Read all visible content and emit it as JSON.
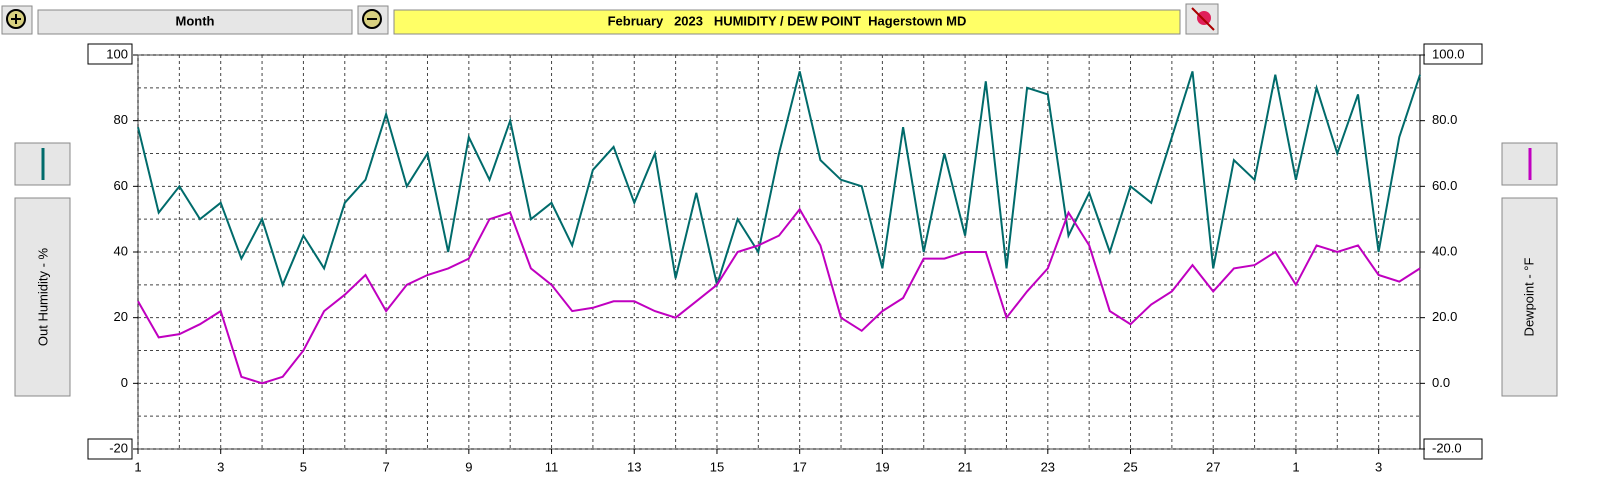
{
  "chart_data": {
    "type": "line",
    "title": "February   2023   HUMIDITY / DEW POINT  Hagerstown MD",
    "period": "Month",
    "x": [
      1,
      1.5,
      2,
      2.5,
      3,
      3.5,
      4,
      4.5,
      5,
      5.5,
      6,
      6.5,
      7,
      7.5,
      8,
      8.5,
      9,
      9.5,
      10,
      10.5,
      11,
      11.5,
      12,
      12.5,
      13,
      13.5,
      14,
      14.5,
      15,
      15.5,
      16,
      16.5,
      17,
      17.5,
      18,
      18.5,
      19,
      19.5,
      20,
      20.5,
      21,
      21.5,
      22,
      22.5,
      23,
      23.5,
      24,
      24.5,
      25,
      25.5,
      26,
      26.5,
      27,
      27.5,
      28,
      28.5,
      29,
      29.5,
      30,
      30.5,
      31,
      31.5,
      32
    ],
    "xlim": [
      1,
      32
    ],
    "xticks": [
      1,
      3,
      5,
      7,
      9,
      11,
      13,
      15,
      17,
      19,
      21,
      23,
      25,
      27,
      {
        "value": 29,
        "label": "1"
      },
      {
        "value": 31,
        "label": "3"
      }
    ],
    "ylim": [
      -20,
      100
    ],
    "yticks": [
      -20,
      0,
      20,
      40,
      60,
      80,
      100
    ],
    "y2lim": [
      -20,
      100
    ],
    "y2ticks": [
      {
        "value": -20,
        "label": "-20.0"
      },
      {
        "value": 0,
        "label": "0.0"
      },
      {
        "value": 20,
        "label": "20.0"
      },
      {
        "value": 40,
        "label": "40.0"
      },
      {
        "value": 60,
        "label": "60.0"
      },
      {
        "value": 80,
        "label": "80.0"
      },
      {
        "value": 100,
        "label": "100.0"
      }
    ],
    "grid": true,
    "series": [
      {
        "name": "Out Humidity - %",
        "color": "#006b6b",
        "values": [
          78,
          52,
          60,
          50,
          55,
          38,
          50,
          30,
          45,
          35,
          55,
          62,
          82,
          60,
          70,
          40,
          75,
          62,
          80,
          50,
          55,
          42,
          65,
          72,
          55,
          70,
          32,
          58,
          30,
          50,
          40,
          70,
          95,
          68,
          62,
          60,
          35,
          78,
          40,
          70,
          45,
          92,
          35,
          90,
          88,
          45,
          58,
          40,
          60,
          55,
          75,
          95,
          35,
          68,
          62,
          94,
          62,
          90,
          70,
          88,
          40,
          75,
          94
        ]
      },
      {
        "name": "Dewpoint - °F",
        "color": "#c000c0",
        "axis": "y2",
        "values": [
          25,
          14,
          15,
          18,
          22,
          2,
          0,
          2,
          10,
          22,
          27,
          33,
          22,
          30,
          33,
          35,
          38,
          50,
          52,
          35,
          30,
          22,
          23,
          25,
          25,
          22,
          20,
          25,
          30,
          40,
          42,
          45,
          53,
          42,
          20,
          16,
          22,
          26,
          38,
          38,
          40,
          40,
          20,
          28,
          35,
          52,
          42,
          22,
          18,
          24,
          28,
          36,
          28,
          35,
          36,
          40,
          30,
          42,
          40,
          42,
          33,
          31,
          35
        ]
      }
    ]
  }
}
